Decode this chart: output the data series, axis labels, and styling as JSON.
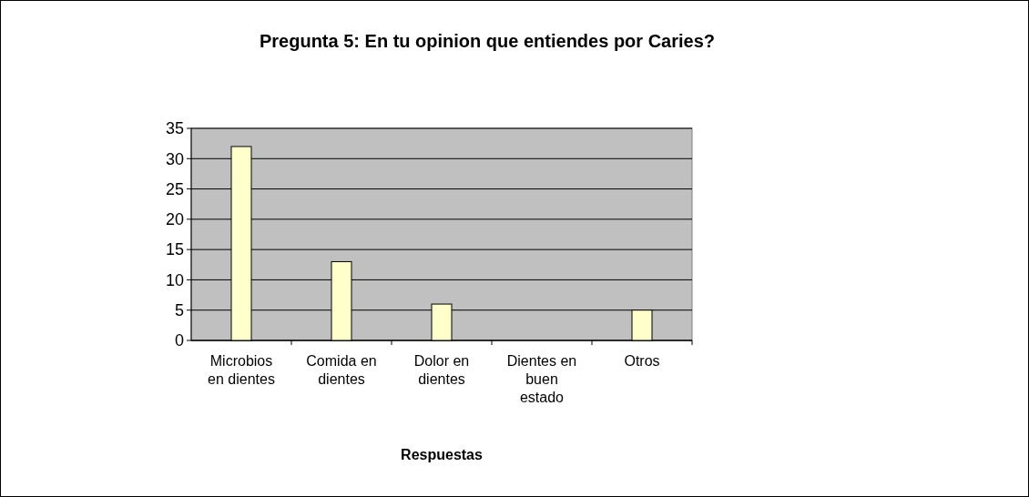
{
  "chart_data": {
    "type": "bar",
    "title": "Pregunta 5: En tu opinion que entiendes por Caries?",
    "xlabel": "Respuestas",
    "categories": [
      "Microbios en dientes",
      "Comida en dientes",
      "Dolor en dientes",
      "Dientes en buen estado",
      "Otros"
    ],
    "values": [
      32,
      13,
      6,
      0,
      5
    ],
    "color": "#ffffcc",
    "ylim": [
      0,
      35
    ],
    "yticks": [
      0,
      5,
      10,
      15,
      20,
      25,
      30,
      35
    ],
    "grid": "y"
  }
}
